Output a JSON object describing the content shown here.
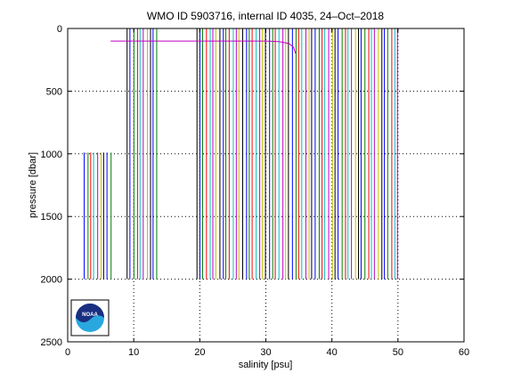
{
  "chart_data": {
    "type": "line",
    "title": "WMO ID 5903716, internal ID 4035, 24–Oct–2018",
    "xlabel": "salinity [psu]",
    "ylabel": "pressure [dbar]",
    "xlim": [
      0,
      60
    ],
    "ylim": [
      0,
      2500
    ],
    "y_reversed": true,
    "grid": true,
    "x_ticks": [
      {
        "value": 0,
        "label": "0"
      },
      {
        "value": 10,
        "label": "10"
      },
      {
        "value": 20,
        "label": "20"
      },
      {
        "value": 30,
        "label": "30"
      },
      {
        "value": 40,
        "label": "40"
      },
      {
        "value": 50,
        "label": "50"
      },
      {
        "value": 60,
        "label": "60"
      }
    ],
    "y_ticks": [
      {
        "value": 0,
        "label": "0"
      },
      {
        "value": 500,
        "label": "500"
      },
      {
        "value": 1000,
        "label": "1000"
      },
      {
        "value": 1500,
        "label": "1500"
      },
      {
        "value": 2000,
        "label": "2000"
      },
      {
        "value": 2500,
        "label": "2500"
      }
    ],
    "colors": [
      "#0000ff",
      "#008000",
      "#ff0000",
      "#00bfbf",
      "#bf00bf",
      "#bfbf00",
      "#000000"
    ],
    "offset_profiles": {
      "count": 96,
      "salinity_start": 2.5,
      "salinity_step": 0.5,
      "pressure_top": 0,
      "pressure_bottom": 2000
    },
    "shallow_profiles": [
      {
        "salinity": [
          2.5,
          6.8
        ],
        "pressure": [
          990,
          2000
        ]
      },
      {
        "salinity": [
          9.0,
          13.7
        ],
        "pressure": [
          0,
          2000
        ]
      }
    ],
    "gaps": [
      [
        13.8,
        19.5
      ]
    ],
    "highlight_profile": {
      "salinity": [
        6.5,
        10.0,
        20.0,
        30.0,
        32.0,
        33.5,
        34.2,
        34.5
      ],
      "pressure": [
        100,
        100,
        100,
        100,
        105,
        120,
        150,
        200
      ]
    }
  },
  "logo": {
    "text": "NOAA",
    "colors": {
      "dark": "#1a2f80",
      "light": "#29a8e0"
    }
  }
}
